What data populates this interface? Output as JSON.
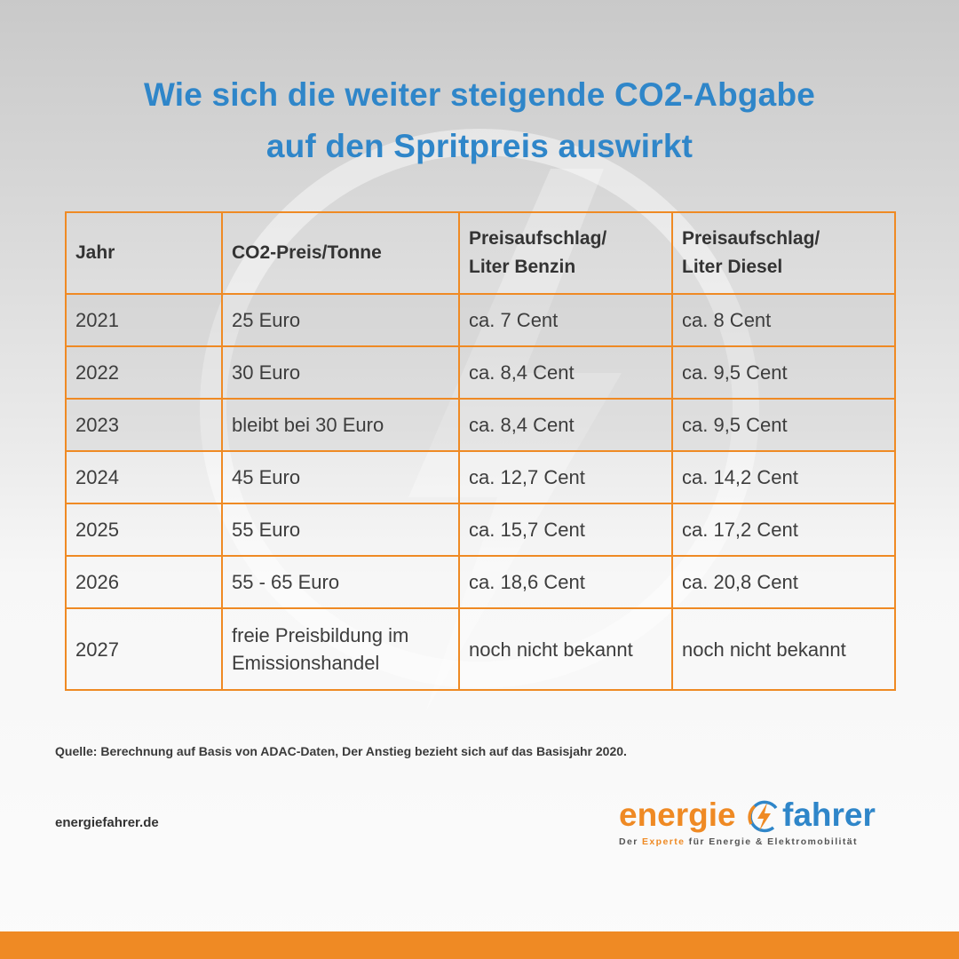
{
  "title": {
    "line1": "Wie sich die weiter steigende CO2-Abgabe",
    "line2": "auf den Spritpreis auswirkt"
  },
  "table": {
    "headers": {
      "year": "Jahr",
      "price": "CO2-Preis/Tonne",
      "benzin_line1": "Preisaufschlag/",
      "benzin_line2": "Liter Benzin",
      "diesel_line1": "Preisaufschlag/",
      "diesel_line2": "Liter Diesel"
    },
    "rows": [
      {
        "year": "2021",
        "price": "25 Euro",
        "benzin": "ca. 7 Cent",
        "diesel": "ca. 8 Cent"
      },
      {
        "year": "2022",
        "price": "30 Euro",
        "benzin": "ca. 8,4 Cent",
        "diesel": "ca. 9,5 Cent"
      },
      {
        "year": "2023",
        "price": "bleibt bei 30 Euro",
        "benzin": "ca. 8,4 Cent",
        "diesel": "ca. 9,5 Cent"
      },
      {
        "year": "2024",
        "price": "45 Euro",
        "benzin": "ca. 12,7 Cent",
        "diesel": "ca. 14,2 Cent"
      },
      {
        "year": "2025",
        "price": "55 Euro",
        "benzin": "ca. 15,7 Cent",
        "diesel": "ca. 17,2 Cent"
      },
      {
        "year": "2026",
        "price": "55 - 65 Euro",
        "benzin": "ca. 18,6 Cent",
        "diesel": "ca. 20,8 Cent"
      },
      {
        "year": "2027",
        "price_line1": "freie Preisbildung im",
        "price_line2": "Emissionshandel",
        "benzin": "noch nicht bekannt",
        "diesel": "noch nicht bekannt"
      }
    ]
  },
  "source": "Quelle: Berechnung auf Basis von ADAC-Daten, Der Anstieg bezieht sich auf das Basisjahr 2020.",
  "website": "energiefahrer.de",
  "logo": {
    "word_orange": "energie",
    "word_blue": "fahrer",
    "tagline_pre": "Der ",
    "tagline_bold": "Experte",
    "tagline_post": " für Energie & Elektromobilität",
    "icon": "lightning-bolt-icon"
  },
  "colors": {
    "accent_orange": "#ef8a24",
    "title_blue": "#2f86c9"
  }
}
